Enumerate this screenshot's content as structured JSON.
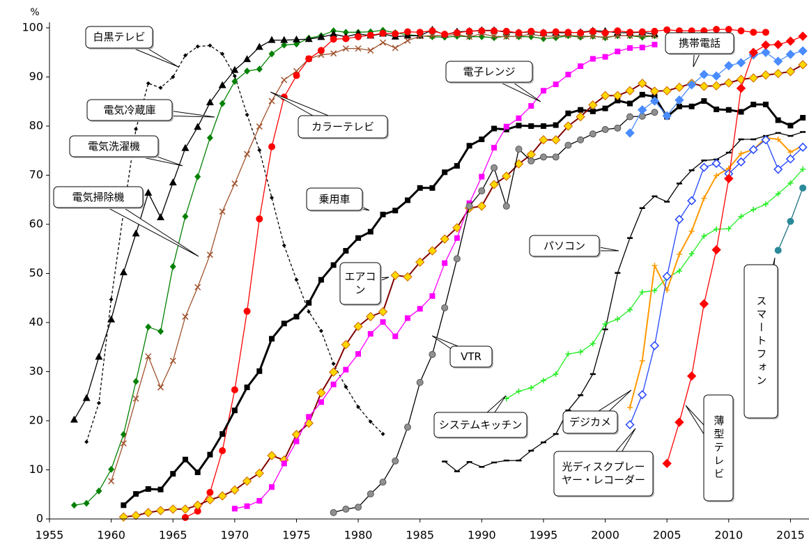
{
  "chart_data": {
    "type": "line",
    "y_unit": "%",
    "x": [
      1957,
      1958,
      1959,
      1960,
      1961,
      1962,
      1963,
      1964,
      1965,
      1966,
      1967,
      1968,
      1969,
      1970,
      1971,
      1972,
      1973,
      1974,
      1975,
      1976,
      1977,
      1978,
      1979,
      1980,
      1981,
      1982,
      1983,
      1984,
      1985,
      1986,
      1987,
      1988,
      1989,
      1990,
      1991,
      1992,
      1993,
      1994,
      1995,
      1996,
      1997,
      1998,
      1999,
      2000,
      2001,
      2002,
      2003,
      2004,
      2005,
      2006,
      2007,
      2008,
      2009,
      2010,
      2011,
      2012,
      2013,
      2014,
      2015,
      2016
    ],
    "xlim": [
      1955,
      2016.5
    ],
    "xticks": [
      1955,
      1960,
      1965,
      1970,
      1975,
      1980,
      1985,
      1990,
      1995,
      2000,
      2005,
      2010,
      2015
    ],
    "ylim": [
      0,
      100
    ],
    "yticks": [
      0,
      10,
      20,
      30,
      40,
      50,
      60,
      70,
      80,
      90,
      100
    ],
    "grid": false,
    "series": [
      {
        "name": "白黒テレビ",
        "color": "#000000",
        "marker": "smalldiamond",
        "dash": true,
        "values": [
          null,
          15.7,
          23.6,
          44.7,
          62.5,
          79.4,
          88.7,
          87.8,
          90.0,
          94.4,
          96.2,
          96.4,
          94.7,
          90.2,
          82.3,
          75.1,
          65.4,
          55.7,
          48.7,
          42.2,
          38.3,
          31.6,
          26.9,
          22.8,
          19.8,
          17.3,
          null,
          null,
          null,
          null,
          null,
          null,
          null,
          null,
          null,
          null,
          null,
          null,
          null,
          null,
          null,
          null,
          null,
          null,
          null,
          null,
          null,
          null,
          null,
          null,
          null,
          null,
          null,
          null,
          null,
          null,
          null,
          null,
          null,
          null
        ]
      },
      {
        "name": "電気冷蔵庫",
        "color": "#008000",
        "marker": "diamond",
        "values": [
          2.8,
          3.2,
          5.7,
          10.1,
          17.2,
          28.0,
          39.1,
          38.2,
          51.4,
          61.6,
          69.7,
          77.6,
          84.6,
          89.1,
          91.2,
          91.6,
          94.7,
          96.5,
          96.7,
          97.9,
          98.4,
          99.4,
          99.1,
          99.1,
          99.2,
          99.5,
          99.0,
          98.6,
          98.4,
          98.2,
          98.1,
          98.3,
          98.2,
          98.2,
          98.0,
          98.3,
          98.2,
          98.2,
          97.8,
          98.0,
          98.4,
          98.1,
          98.3,
          98.0,
          98.4,
          98.4,
          98.1,
          98.4,
          null,
          null,
          null,
          null,
          null,
          null,
          null,
          null,
          null,
          null,
          null,
          null
        ]
      },
      {
        "name": "電気洗濯機",
        "color": "#000000",
        "marker": "triangle",
        "values": [
          20.2,
          24.6,
          33.0,
          40.6,
          50.2,
          58.1,
          66.4,
          61.4,
          68.5,
          75.5,
          79.8,
          84.8,
          88.3,
          91.4,
          93.6,
          96.1,
          97.5,
          97.5,
          97.6,
          97.7,
          98.1,
          98.7,
          98.2,
          98.8,
          98.4,
          98.8,
          98.2,
          98.4,
          98.4,
          99.6,
          98.6,
          99.2,
          99.3,
          99.5,
          99.5,
          99.1,
          99.0,
          99.2,
          99.0,
          99.0,
          99.0,
          99.1,
          99.4,
          99.3,
          99.0,
          99.0,
          99.1,
          98.7,
          null,
          null,
          null,
          null,
          null,
          null,
          null,
          null,
          null,
          null,
          null,
          null
        ]
      },
      {
        "name": "電気掃除機",
        "color": "#a0522d",
        "marker": "x",
        "values": [
          null,
          null,
          null,
          7.7,
          15.4,
          24.5,
          33.1,
          26.8,
          32.2,
          41.2,
          47.2,
          53.8,
          62.6,
          68.3,
          74.3,
          79.9,
          85.1,
          89.4,
          91.2,
          93.7,
          94.5,
          94.8,
          95.8,
          95.8,
          95.4,
          97.0,
          95.9,
          97.4,
          98.3,
          98.4,
          98.5,
          98.6,
          98.2,
          98.8,
          98.3,
          98.2,
          98.3,
          98.7,
          98.3,
          98.3,
          98.5,
          98.3,
          98.3,
          98.1,
          98.4,
          98.4,
          98.4,
          98.4,
          null,
          null,
          null,
          null,
          null,
          null,
          null,
          null,
          null,
          null,
          null,
          null
        ]
      },
      {
        "name": "カラーテレビ",
        "color": "#ff0000",
        "marker": "circle",
        "values": [
          null,
          null,
          null,
          null,
          null,
          null,
          null,
          null,
          null,
          0.3,
          1.6,
          5.4,
          13.9,
          26.3,
          42.3,
          61.1,
          75.8,
          85.9,
          90.3,
          93.7,
          95.4,
          97.7,
          97.8,
          98.2,
          98.5,
          98.9,
          98.8,
          99.2,
          99.1,
          99.4,
          98.7,
          99.0,
          99.3,
          99.4,
          99.4,
          99.3,
          99.0,
          99.3,
          99.0,
          99.2,
          99.1,
          99.0,
          99.3,
          99.0,
          99.4,
          99.1,
          99.2,
          99.3,
          99.6,
          99.4,
          99.4,
          99.4,
          99.7,
          99.7,
          99.4,
          99.1,
          99.1,
          null,
          null,
          null
        ]
      },
      {
        "name": "乗用車",
        "color": "#000000",
        "marker": "square",
        "width": 3,
        "values": [
          null,
          null,
          null,
          null,
          2.8,
          5.1,
          6.1,
          6.0,
          9.2,
          12.1,
          9.5,
          13.1,
          17.3,
          22.1,
          26.8,
          30.1,
          36.7,
          39.8,
          41.2,
          44.0,
          48.7,
          51.7,
          54.6,
          57.2,
          58.5,
          62.0,
          62.8,
          64.9,
          67.4,
          67.4,
          70.6,
          71.9,
          76.0,
          77.3,
          79.5,
          79.3,
          80.1,
          80.0,
          80.0,
          80.2,
          82.6,
          83.3,
          83.0,
          83.6,
          85.2,
          84.6,
          86.4,
          86.0,
          81.9,
          84.0,
          84.0,
          85.1,
          83.4,
          83.3,
          82.9,
          84.4,
          84.4,
          81.2,
          80.1,
          81.7
        ]
      },
      {
        "name": "エアコン",
        "color": "#800000",
        "marker_color": "#ffd700",
        "marker": "bigdiamond",
        "width": 2,
        "values": [
          null,
          null,
          null,
          null,
          0.4,
          0.7,
          1.3,
          1.7,
          2.0,
          2.0,
          2.8,
          3.9,
          4.7,
          5.9,
          7.7,
          9.3,
          12.9,
          12.0,
          17.2,
          19.5,
          25.7,
          29.9,
          35.5,
          39.2,
          41.2,
          42.2,
          49.6,
          49.3,
          52.3,
          54.6,
          57.0,
          59.3,
          63.3,
          63.7,
          68.1,
          69.8,
          72.3,
          74.2,
          77.2,
          77.2,
          80.0,
          81.9,
          84.3,
          86.2,
          86.2,
          87.2,
          88.7,
          87.1,
          87.2,
          87.9,
          88.7,
          88.1,
          88.2,
          88.8,
          89.5,
          89.8,
          90.4,
          90.7,
          91.1,
          92.5
        ]
      },
      {
        "name": "電子レンジ",
        "color": "#ff00ff",
        "marker": "square",
        "values": [
          null,
          null,
          null,
          null,
          null,
          null,
          null,
          null,
          null,
          null,
          null,
          null,
          null,
          2.1,
          2.6,
          3.7,
          6.5,
          11.3,
          15.8,
          20.8,
          23.8,
          27.4,
          30.4,
          33.6,
          37.7,
          40.1,
          37.2,
          40.9,
          42.8,
          45.4,
          52.1,
          57.2,
          64.3,
          69.7,
          75.6,
          79.9,
          81.6,
          84.1,
          87.2,
          88.5,
          90.5,
          92.2,
          93.7,
          94.1,
          95.2,
          95.9,
          96.0,
          96.6,
          null,
          null,
          null,
          null,
          null,
          null,
          null,
          null,
          null,
          null,
          null,
          null
        ]
      },
      {
        "name": "VTR",
        "color": "#000000",
        "marker_color": "#909090",
        "marker": "circle",
        "values": [
          null,
          null,
          null,
          null,
          null,
          null,
          null,
          null,
          null,
          null,
          null,
          null,
          null,
          null,
          null,
          null,
          null,
          null,
          null,
          null,
          null,
          1.3,
          2.0,
          2.4,
          5.1,
          7.5,
          11.8,
          18.7,
          27.8,
          33.5,
          43.0,
          53.0,
          63.7,
          66.8,
          71.5,
          63.7,
          75.3,
          72.9,
          73.7,
          73.7,
          76.1,
          77.2,
          78.4,
          79.3,
          79.6,
          81.9,
          82.0,
          82.8,
          null,
          null,
          null,
          null,
          null,
          null,
          null,
          null,
          null,
          null,
          null,
          null
        ]
      },
      {
        "name": "パソコン",
        "color": "#000000",
        "marker": "dash",
        "values": [
          null,
          null,
          null,
          null,
          null,
          null,
          null,
          null,
          null,
          null,
          null,
          null,
          null,
          null,
          null,
          null,
          null,
          null,
          null,
          null,
          null,
          null,
          null,
          null,
          null,
          null,
          null,
          null,
          null,
          null,
          11.7,
          9.7,
          11.6,
          10.6,
          11.5,
          11.9,
          11.9,
          13.9,
          15.6,
          17.3,
          22.1,
          25.2,
          29.5,
          38.6,
          50.1,
          57.2,
          63.3,
          65.7,
          64.6,
          68.3,
          71.0,
          73.0,
          73.2,
          74.6,
          77.3,
          77.3,
          78.0,
          78.6,
          78.0,
          78.8
        ]
      },
      {
        "name": "システムキッチン",
        "color": "#22ee22",
        "marker": "plus",
        "values": [
          null,
          null,
          null,
          null,
          null,
          null,
          null,
          null,
          null,
          null,
          null,
          null,
          null,
          null,
          null,
          null,
          null,
          null,
          null,
          null,
          null,
          null,
          null,
          null,
          null,
          null,
          null,
          null,
          null,
          null,
          null,
          null,
          null,
          null,
          null,
          24.5,
          26.0,
          26.7,
          28.2,
          29.5,
          33.6,
          34.0,
          35.7,
          39.7,
          40.7,
          42.6,
          46.2,
          46.5,
          49.1,
          50.5,
          54.0,
          57.6,
          59.0,
          59.1,
          61.6,
          63.0,
          64.1,
          66.2,
          68.4,
          71.2
        ]
      },
      {
        "name": "携帯電話",
        "color": "#4a8cff",
        "marker": "bigdiamond",
        "values": [
          null,
          null,
          null,
          null,
          null,
          null,
          null,
          null,
          null,
          null,
          null,
          null,
          null,
          null,
          null,
          null,
          null,
          null,
          null,
          null,
          null,
          null,
          null,
          null,
          null,
          null,
          null,
          null,
          null,
          null,
          null,
          null,
          null,
          null,
          null,
          null,
          null,
          null,
          null,
          null,
          null,
          null,
          null,
          null,
          null,
          78.6,
          83.3,
          85.1,
          82.1,
          85.3,
          88.4,
          90.5,
          90.2,
          92.3,
          92.9,
          94.5,
          95.0,
          93.2,
          94.6,
          95.3
        ]
      },
      {
        "name": "デジカメ",
        "color": "#ff9900",
        "marker": "plus",
        "width": 2,
        "values": [
          null,
          null,
          null,
          null,
          null,
          null,
          null,
          null,
          null,
          null,
          null,
          null,
          null,
          null,
          null,
          null,
          null,
          null,
          null,
          null,
          null,
          null,
          null,
          null,
          null,
          null,
          null,
          null,
          null,
          null,
          null,
          null,
          null,
          null,
          null,
          null,
          null,
          null,
          null,
          null,
          null,
          null,
          null,
          null,
          null,
          22.7,
          32.2,
          51.6,
          46.6,
          53.9,
          58.6,
          65.3,
          69.9,
          71.4,
          74.4,
          75.2,
          77.6,
          77.3,
          74.7,
          76.0
        ]
      },
      {
        "name": "光ディスクプレーヤー・レコーダー",
        "color": "#2244ff",
        "marker": "opendiamond",
        "values": [
          null,
          null,
          null,
          null,
          null,
          null,
          null,
          null,
          null,
          null,
          null,
          null,
          null,
          null,
          null,
          null,
          null,
          null,
          null,
          null,
          null,
          null,
          null,
          null,
          null,
          null,
          null,
          null,
          null,
          null,
          null,
          null,
          null,
          null,
          null,
          null,
          null,
          null,
          null,
          null,
          null,
          null,
          null,
          null,
          null,
          19.2,
          25.3,
          35.3,
          49.4,
          61.0,
          64.8,
          71.6,
          72.4,
          70.3,
          72.7,
          75.2,
          77.2,
          71.2,
          73.3,
          75.7
        ]
      },
      {
        "name": "薄型テレビ",
        "color": "#ff0000",
        "marker": "bigdiamond",
        "values": [
          null,
          null,
          null,
          null,
          null,
          null,
          null,
          null,
          null,
          null,
          null,
          null,
          null,
          null,
          null,
          null,
          null,
          null,
          null,
          null,
          null,
          null,
          null,
          null,
          null,
          null,
          null,
          null,
          null,
          null,
          null,
          null,
          null,
          null,
          null,
          null,
          null,
          null,
          null,
          null,
          null,
          null,
          null,
          null,
          null,
          null,
          null,
          null,
          11.3,
          19.7,
          29.1,
          43.8,
          54.8,
          69.3,
          87.7,
          95.0,
          96.5,
          96.6,
          97.3,
          98.3
        ]
      },
      {
        "name": "スマートフォン",
        "color": "#1a7080",
        "marker": "circle",
        "marker_color": "#2a8a99",
        "values": [
          null,
          null,
          null,
          null,
          null,
          null,
          null,
          null,
          null,
          null,
          null,
          null,
          null,
          null,
          null,
          null,
          null,
          null,
          null,
          null,
          null,
          null,
          null,
          null,
          null,
          null,
          null,
          null,
          null,
          null,
          null,
          null,
          null,
          null,
          null,
          null,
          null,
          null,
          null,
          null,
          null,
          null,
          null,
          null,
          null,
          null,
          null,
          null,
          null,
          null,
          null,
          null,
          null,
          null,
          null,
          null,
          null,
          54.7,
          60.6,
          67.4
        ]
      }
    ]
  }
}
